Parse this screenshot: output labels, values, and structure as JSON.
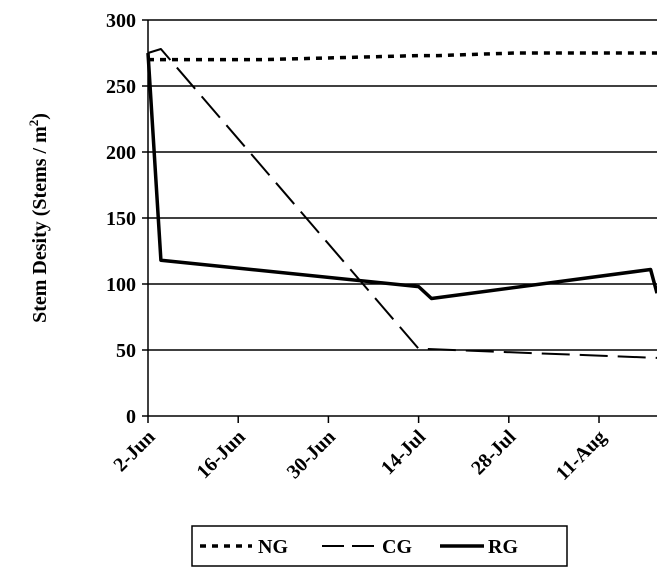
{
  "chart_data": {
    "type": "line",
    "title": "",
    "ylabel": "Stem Desity (Stems / m²)",
    "xlabel": "",
    "ylim": [
      0,
      300
    ],
    "yticks": [
      "0",
      "50",
      "100",
      "150",
      "200",
      "250",
      "300"
    ],
    "xticks": [
      "2-Jun",
      "16-Jun",
      "30-Jun",
      "14-Jul",
      "28-Jul",
      "11-Aug"
    ],
    "xtick_days": [
      0,
      14,
      28,
      42,
      56,
      70
    ],
    "xlim_days": [
      0,
      79
    ],
    "grid": "horizontal",
    "legend_position": "bottom",
    "series": [
      {
        "name": "NG",
        "style": "dotted",
        "color": "#000000",
        "days": [
          0,
          2,
          5,
          18,
          42,
          45,
          57,
          79
        ],
        "values": [
          270,
          270,
          270,
          270,
          273,
          273,
          275,
          275
        ]
      },
      {
        "name": "CG",
        "style": "dashed",
        "color": "#000000",
        "days": [
          0,
          2,
          42,
          79
        ],
        "values": [
          275,
          278,
          51,
          44
        ]
      },
      {
        "name": "RG",
        "style": "solid",
        "color": "#000000",
        "days": [
          0,
          2,
          42,
          44,
          78,
          79
        ],
        "values": [
          275,
          118,
          98,
          89,
          111,
          93
        ]
      }
    ]
  }
}
